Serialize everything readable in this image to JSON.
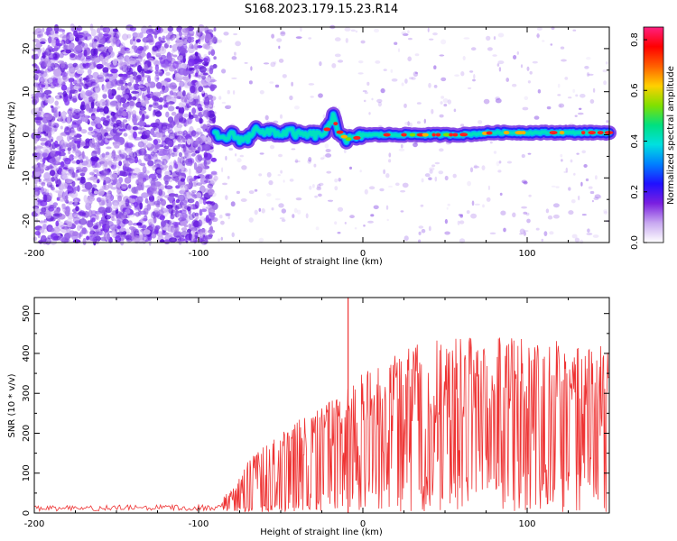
{
  "title": "S168.2023.179.15.23.R14",
  "chart_data": [
    {
      "type": "heatmap",
      "xlabel": "Height of straight line (km)",
      "ylabel": "Frequency (Hz)",
      "xlim": [
        -200,
        150
      ],
      "ylim": [
        -25,
        25
      ],
      "x_ticks": [
        -200,
        -100,
        0,
        100
      ],
      "x_tick_labels": [
        "-200",
        "-100",
        "0",
        "100"
      ],
      "y_ticks": [
        -20,
        -10,
        0,
        10,
        20
      ],
      "y_tick_labels": [
        "-20",
        "-10",
        "0",
        "10",
        "20"
      ],
      "colorbar": {
        "label": "Normalized spectral amplitude",
        "range": [
          0.0,
          0.85
        ],
        "ticks": [
          0.0,
          0.2,
          0.4,
          0.6,
          0.8
        ],
        "tick_labels": [
          "0.0",
          "0.2",
          "0.4",
          "0.6",
          "0.8"
        ],
        "colormap": [
          "#ffffff",
          "#c8a8f0",
          "#7a1fe0",
          "#2010ff",
          "#0080ff",
          "#00e0e0",
          "#00e080",
          "#80e000",
          "#ffd000",
          "#ff6000",
          "#ff0000",
          "#ff2080"
        ]
      },
      "ridge": {
        "x": [
          -90,
          -85,
          -80,
          -75,
          -70,
          -65,
          -60,
          -55,
          -50,
          -45,
          -40,
          -35,
          -30,
          -25,
          -20,
          -18,
          -15,
          -10,
          -5,
          0,
          20,
          40,
          60,
          80,
          100,
          120,
          150
        ],
        "freq": [
          0,
          -1,
          0,
          -1,
          -1,
          2,
          0,
          1,
          0,
          1,
          0,
          0,
          0,
          0,
          2,
          4,
          1,
          -1,
          -1,
          0,
          0,
          0,
          0,
          0.5,
          0.5,
          0.5,
          0.5
        ]
      },
      "grid": false
    },
    {
      "type": "line",
      "xlabel": "Height of straight line (km)",
      "ylabel": "SNR (10 * v/v)",
      "xlim": [
        -200,
        150
      ],
      "ylim": [
        0,
        540
      ],
      "x_ticks": [
        -200,
        -100,
        0,
        100
      ],
      "x_tick_labels": [
        "-200",
        "-100",
        "0",
        "100"
      ],
      "y_ticks": [
        0,
        100,
        200,
        300,
        400,
        500
      ],
      "y_tick_labels": [
        "0",
        "100",
        "200",
        "300",
        "400",
        "500"
      ],
      "color": "#ee3333",
      "envelope": {
        "x": [
          -200,
          -90,
          -85,
          -80,
          -75,
          -70,
          -60,
          -50,
          -40,
          -30,
          -20,
          -10,
          0,
          10,
          20,
          30,
          40,
          50,
          60,
          80,
          100,
          120,
          140,
          150
        ],
        "upper": [
          18,
          22,
          40,
          60,
          90,
          130,
          170,
          200,
          230,
          260,
          280,
          320,
          350,
          380,
          400,
          420,
          430,
          435,
          440,
          440,
          440,
          435,
          430,
          410
        ],
        "lower": [
          5,
          6,
          8,
          10,
          12,
          14,
          18,
          22,
          30,
          40,
          60,
          80,
          110,
          130,
          150,
          160,
          170,
          170,
          165,
          160,
          160,
          160,
          160,
          160
        ]
      },
      "spike": {
        "x": -9,
        "y": 540
      },
      "grid": false
    }
  ]
}
